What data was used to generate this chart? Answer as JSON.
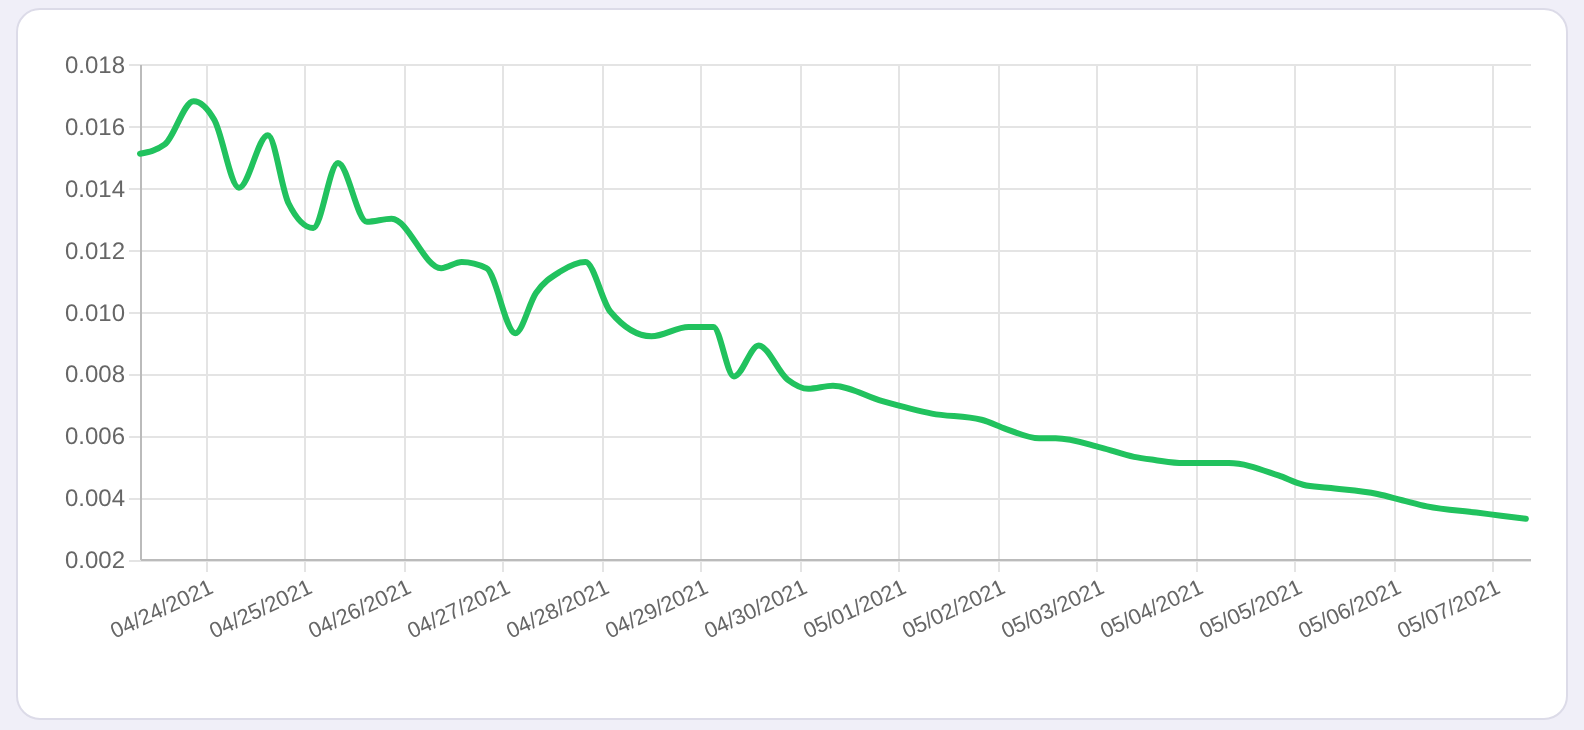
{
  "chart_data": {
    "type": "line",
    "x": [
      "2021-04-23T08:00",
      "2021-04-23T14:00",
      "2021-04-23T21:00",
      "2021-04-24T02:00",
      "2021-04-24T08:00",
      "2021-04-24T15:00",
      "2021-04-24T20:00",
      "2021-04-25T02:00",
      "2021-04-25T08:00",
      "2021-04-25T15:00",
      "2021-04-25T21:00",
      "2021-04-26T09:00",
      "2021-04-26T14:00",
      "2021-04-26T20:00",
      "2021-04-27T03:00",
      "2021-04-27T08:00",
      "2021-04-27T14:00",
      "2021-04-27T20:00",
      "2021-04-28T02:00",
      "2021-04-28T12:00",
      "2021-04-28T21:00",
      "2021-04-29T03:00",
      "2021-04-29T08:00",
      "2021-04-29T14:00",
      "2021-04-29T21:00",
      "2021-04-30T02:00",
      "2021-04-30T08:00",
      "2021-04-30T20:00",
      "2021-05-01T08:00",
      "2021-05-01T20:00",
      "2021-05-02T02:00",
      "2021-05-02T10:00",
      "2021-05-02T14:00",
      "2021-05-03T01:00",
      "2021-05-03T09:00",
      "2021-05-03T14:00",
      "2021-05-03T21:00",
      "2021-05-04T08:00",
      "2021-05-04T20:00",
      "2021-05-05T02:00",
      "2021-05-05T08:00",
      "2021-05-05T20:00",
      "2021-05-06T02:00",
      "2021-05-06T08:00",
      "2021-05-06T20:00",
      "2021-05-07T02:00",
      "2021-05-07T08:00"
    ],
    "series": [
      {
        "color": "#21c25e",
        "values": [
          0.0151,
          0.0154,
          0.0168,
          0.0162,
          0.014,
          0.0157,
          0.0135,
          0.0127,
          0.0148,
          0.0129,
          0.013,
          0.0114,
          0.0116,
          0.0114,
          0.0093,
          0.0106,
          0.0113,
          0.0116,
          0.01,
          0.0092,
          0.0095,
          0.0095,
          0.0079,
          0.0089,
          0.0078,
          0.0075,
          0.0076,
          0.0071,
          0.0067,
          0.0065,
          0.0062,
          0.0059,
          0.0059,
          0.0056,
          0.0053,
          0.0052,
          0.0051,
          0.0051,
          0.0047,
          0.0044,
          0.0043,
          0.0041,
          0.0039,
          0.0037,
          0.0035,
          0.0034,
          0.0033
        ]
      }
    ],
    "xlim": [
      "2021-04-23T08:00",
      "2021-05-07T09:00"
    ],
    "xticks": [
      {
        "value": "2021-04-24",
        "label": "04/24/2021"
      },
      {
        "value": "2021-04-25",
        "label": "04/25/2021"
      },
      {
        "value": "2021-04-26",
        "label": "04/26/2021"
      },
      {
        "value": "2021-04-27",
        "label": "04/27/2021"
      },
      {
        "value": "2021-04-28",
        "label": "04/28/2021"
      },
      {
        "value": "2021-04-29",
        "label": "04/29/2021"
      },
      {
        "value": "2021-04-30",
        "label": "04/30/2021"
      },
      {
        "value": "2021-05-01",
        "label": "05/01/2021"
      },
      {
        "value": "2021-05-02",
        "label": "05/02/2021"
      },
      {
        "value": "2021-05-03",
        "label": "05/03/2021"
      },
      {
        "value": "2021-05-04",
        "label": "05/04/2021"
      },
      {
        "value": "2021-05-05",
        "label": "05/05/2021"
      },
      {
        "value": "2021-05-06",
        "label": "05/06/2021"
      },
      {
        "value": "2021-05-07",
        "label": "05/07/2021"
      }
    ],
    "ylim": [
      0.002,
      0.018
    ],
    "yticks": [
      {
        "value": 0.002,
        "label": "0.002"
      },
      {
        "value": 0.004,
        "label": "0.004"
      },
      {
        "value": 0.006,
        "label": "0.006"
      },
      {
        "value": 0.008,
        "label": "0.008"
      },
      {
        "value": 0.01,
        "label": "0.010"
      },
      {
        "value": 0.012,
        "label": "0.012"
      },
      {
        "value": 0.014,
        "label": "0.014"
      },
      {
        "value": 0.016,
        "label": "0.016"
      },
      {
        "value": 0.018,
        "label": "0.018"
      }
    ],
    "grid": true
  }
}
